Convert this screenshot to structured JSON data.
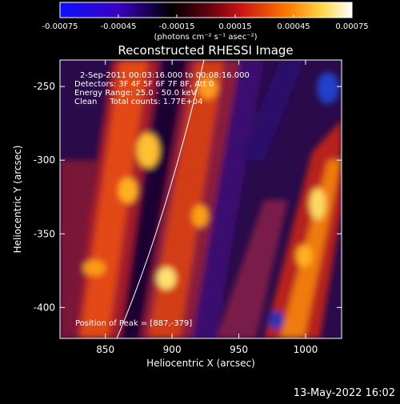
{
  "colorbar": {
    "tick_labels": [
      "-0.00075",
      "-0.00045",
      "-0.00015",
      "0.00015",
      "0.00045",
      "0.00075"
    ],
    "unit_label": "(photons cm⁻² s⁻¹ asec⁻²)",
    "colormap": "blue-black-red-yellow-white"
  },
  "plot": {
    "title": "Reconstructed RHESSI Image",
    "xlabel": "Heliocentric X (arcsec)",
    "ylabel": "Heliocentric Y (arcsec)",
    "x_ticks": [
      "850",
      "900",
      "950",
      "1000"
    ],
    "y_ticks": [
      "-250",
      "-300",
      "-350",
      "-400"
    ],
    "xlim": [
      816,
      1027
    ],
    "ylim": [
      -421,
      -232
    ],
    "info_lines": [
      "2-Sep-2011 00:03:16.000 to 00:08:16.000",
      "Detectors: 3F 4F 5F 6F 7F 8F, Att 0",
      "Energy Range: 25.0 - 50.0 keV",
      "Clean     Total counts: 1.77E+04"
    ],
    "peak_label": "Position of Peak = [887,-379]",
    "limb_color": "#ffffff"
  },
  "timestamp": "13-May-2022 16:02"
}
